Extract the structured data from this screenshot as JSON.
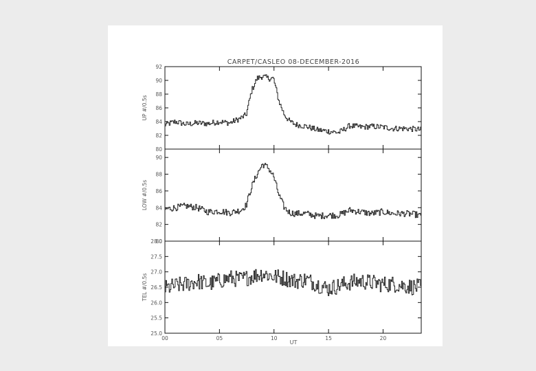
{
  "chart_data": {
    "type": "line",
    "title": "CARPET/CASLEO   08-DECEMBER-2016",
    "xlabel": "UT",
    "xlim": [
      0,
      23.5
    ],
    "x_ticks": [
      0,
      5,
      10,
      15,
      20
    ],
    "x_tick_labels": [
      "00",
      "05",
      "10",
      "15",
      "20"
    ],
    "panels": [
      {
        "name": "UP",
        "ylabel": "UP  #/0.5s",
        "ylim": [
          80,
          92
        ],
        "y_ticks": [
          80,
          82,
          84,
          86,
          88,
          90,
          92
        ],
        "y_tick_labels": [
          "80",
          "82",
          "84",
          "86",
          "88",
          "90",
          "92"
        ],
        "series": [
          {
            "x": [
              0,
              1,
              2,
              3,
              4,
              5,
              6,
              7,
              7.5,
              8,
              8.5,
              9,
              9.5,
              10,
              10.5,
              11,
              11.5,
              12,
              13,
              14,
              15,
              16,
              17,
              18,
              19,
              20,
              21,
              22,
              23,
              23.5
            ],
            "values": [
              83.5,
              84.0,
              83.6,
              83.8,
              83.7,
              84.0,
              83.8,
              84.5,
              85.0,
              88.5,
              90.3,
              90.6,
              90.3,
              90.3,
              87.0,
              85.0,
              84.0,
              83.6,
              83.3,
              82.8,
              82.6,
              82.4,
              83.4,
              83.2,
              83.3,
              83.2,
              83.0,
              83.0,
              82.9,
              82.8
            ]
          }
        ]
      },
      {
        "name": "LOW",
        "ylabel": "LOW  #/0.5s",
        "ylim": [
          80,
          91
        ],
        "y_ticks": [
          80,
          82,
          84,
          86,
          88,
          90
        ],
        "y_tick_labels": [
          "80",
          "82",
          "84",
          "86",
          "88",
          "90"
        ],
        "series": [
          {
            "x": [
              0,
              1,
              2,
              3,
              4,
              5,
              6,
              7,
              7.5,
              8,
              8.5,
              9,
              9.5,
              10,
              10.5,
              11,
              11.5,
              12,
              13,
              14,
              15,
              16,
              17,
              18,
              19,
              20,
              21,
              22,
              23,
              23.5
            ],
            "values": [
              83.8,
              84.0,
              84.2,
              84.0,
              83.5,
              83.6,
              83.4,
              83.7,
              84.3,
              86.5,
              88.0,
              89.2,
              88.8,
              87.8,
              85.5,
              84.0,
              83.4,
              83.3,
              83.3,
              83.0,
              83.1,
              83.1,
              83.7,
              83.5,
              83.3,
              83.5,
              83.3,
              83.3,
              83.2,
              83.0
            ]
          }
        ]
      },
      {
        "name": "TEL",
        "ylabel": "TEL  #/0.5s",
        "ylim": [
          25.0,
          28.0
        ],
        "y_ticks": [
          25.0,
          25.5,
          26.0,
          26.5,
          27.0,
          27.5,
          28.0
        ],
        "y_tick_labels": [
          "25.0",
          "25.5",
          "26.0",
          "26.5",
          "27.0",
          "27.5",
          "28.0"
        ],
        "series": [
          {
            "x": [
              0,
              1,
              2,
              3,
              4,
              5,
              6,
              7,
              8,
              9,
              10,
              11,
              12,
              13,
              14,
              15,
              16,
              17,
              18,
              19,
              20,
              21,
              22,
              23,
              23.5
            ],
            "values": [
              26.45,
              26.55,
              26.6,
              26.7,
              26.6,
              26.7,
              26.8,
              26.75,
              26.85,
              26.95,
              26.85,
              26.8,
              26.7,
              26.75,
              26.6,
              26.45,
              26.55,
              26.65,
              26.7,
              26.65,
              26.6,
              26.6,
              26.55,
              26.5,
              26.5
            ]
          }
        ]
      }
    ]
  }
}
